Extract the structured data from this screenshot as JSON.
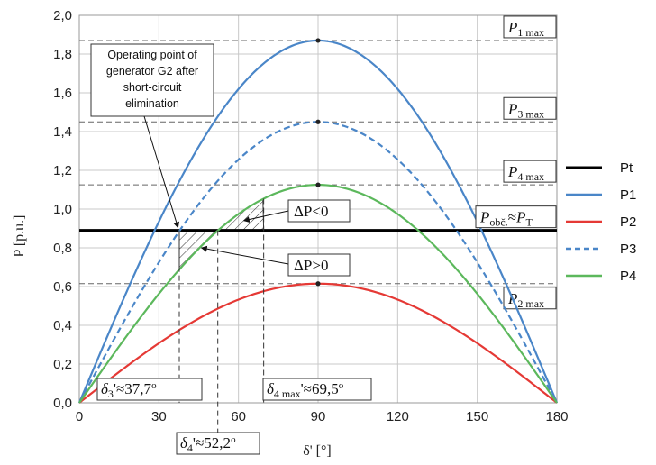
{
  "chart_data": {
    "type": "line",
    "xlabel": "δ' [°]",
    "ylabel": "P [p.u.]",
    "xlim": [
      0,
      180
    ],
    "ylim": [
      0,
      2.0
    ],
    "x_ticks": [
      "0",
      "30",
      "60",
      "90",
      "120",
      "150",
      "180"
    ],
    "y_ticks": [
      "0,0",
      "0,2",
      "0,4",
      "0,6",
      "0,8",
      "1,0",
      "1,2",
      "1,4",
      "1,6",
      "1,8",
      "2,0"
    ],
    "grid": true,
    "legend_position": "right",
    "series": [
      {
        "name": "Pt",
        "kind": "constant",
        "value": 0.89,
        "color": "#000000",
        "dash": "solid"
      },
      {
        "name": "P1",
        "kind": "sine",
        "amplitude": 1.87,
        "color": "#4a86c8",
        "dash": "solid"
      },
      {
        "name": "P2",
        "kind": "sine",
        "amplitude": 0.615,
        "color": "#e53935",
        "dash": "solid"
      },
      {
        "name": "P3",
        "kind": "sine",
        "amplitude": 1.45,
        "color": "#4a86c8",
        "dash": "dashed"
      },
      {
        "name": "P4",
        "kind": "sine",
        "amplitude": 1.125,
        "color": "#5cb85c",
        "dash": "solid"
      }
    ],
    "max_labels": [
      {
        "main": "P",
        "sub": "1 max",
        "value": 1.87
      },
      {
        "main": "P",
        "sub": "3 max",
        "value": 1.45
      },
      {
        "main": "P",
        "sub": "4 max",
        "value": 1.125
      },
      {
        "main": "P",
        "sub": "2 max",
        "value": 0.615
      }
    ],
    "pt_label": {
      "main": "P",
      "sub": "obč.",
      "approx": "≈",
      "main2": "P",
      "sub2": "T"
    },
    "delta_labels": [
      {
        "pre": "δ",
        "sub": "3",
        "post": "'≈37,7",
        "sup": "o",
        "value": 37.7
      },
      {
        "pre": "δ",
        "sub": "4",
        "post": "'≈52,2",
        "sup": "o",
        "value": 52.2
      },
      {
        "pre": "δ",
        "sub": "4 max",
        "post": "'≈69,5",
        "sup": "o",
        "value": 69.5
      }
    ],
    "area_labels": {
      "neg": "ΔP<0",
      "pos": "ΔP>0"
    },
    "note_lines": [
      "Operating point of",
      "generator G2 after",
      "short-circuit",
      "elimination"
    ]
  }
}
